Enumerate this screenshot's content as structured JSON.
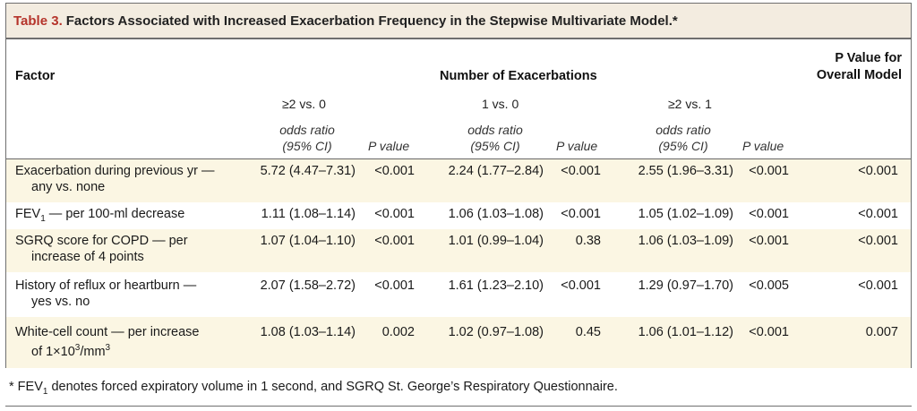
{
  "table": {
    "label": "Table 3.",
    "title": "Factors Associated with Increased Exacerbation Frequency in the Stepwise Multivariate Model.*",
    "header": {
      "factor": "Factor",
      "group": "Number of Exacerbations",
      "overall_line1": "P Value for",
      "overall_line2": "Overall Model",
      "comparisons": [
        "≥2 vs. 0",
        "1 vs. 0",
        "≥2 vs. 1"
      ],
      "or_line1": "odds ratio",
      "or_line2": "(95% CI)",
      "p_label": "P value"
    },
    "rows": [
      {
        "factor_line1": "Exacerbation during previous yr —",
        "factor_line2": "any vs. none",
        "or1": "5.72 (4.47–7.31)",
        "p1": "<0.001",
        "or2": "2.24 (1.77–2.84)",
        "p2": "<0.001",
        "or3": "2.55 (1.96–3.31)",
        "p3": "<0.001",
        "overall": "<0.001"
      },
      {
        "factor_pre": "FEV",
        "factor_sub": "1",
        "factor_post": " — per 100-ml decrease",
        "or1": "1.11 (1.08–1.14)",
        "p1": "<0.001",
        "or2": "1.06 (1.03–1.08)",
        "p2": "<0.001",
        "or3": "1.05 (1.02–1.09)",
        "p3": "<0.001",
        "overall": "<0.001"
      },
      {
        "factor_line1": "SGRQ score for COPD — per",
        "factor_line2": "increase of 4 points",
        "or1": "1.07 (1.04–1.10)",
        "p1": "<0.001",
        "or2": "1.01 (0.99–1.04)",
        "p2": "0.38",
        "or3": "1.06 (1.03–1.09)",
        "p3": "<0.001",
        "overall": "<0.001"
      },
      {
        "factor_line1": "History of reflux or heartburn —",
        "factor_line2": "yes vs. no",
        "or1": "2.07 (1.58–2.72)",
        "p1": "<0.001",
        "or2": "1.61 (1.23–2.10)",
        "p2": "<0.001",
        "or3": "1.29 (0.97–1.70)",
        "p3": "<0.005",
        "overall": "<0.001"
      },
      {
        "factor_line1": "White-cell count — per increase",
        "factor_line2_pre": "of 1×10",
        "factor_line2_sup1": "3",
        "factor_line2_mid": "/mm",
        "factor_line2_sup2": "3",
        "or1": "1.08 (1.03–1.14)",
        "p1": "0.002",
        "or2": "1.02 (0.97–1.08)",
        "p2": "0.45",
        "or3": "1.06 (1.01–1.12)",
        "p3": "<0.001",
        "overall": "0.007"
      }
    ],
    "footnote_pre": "* FEV",
    "footnote_sub": "1",
    "footnote_post": " denotes forced expiratory volume in 1 second, and SGRQ St. George’s Respiratory Questionnaire."
  }
}
